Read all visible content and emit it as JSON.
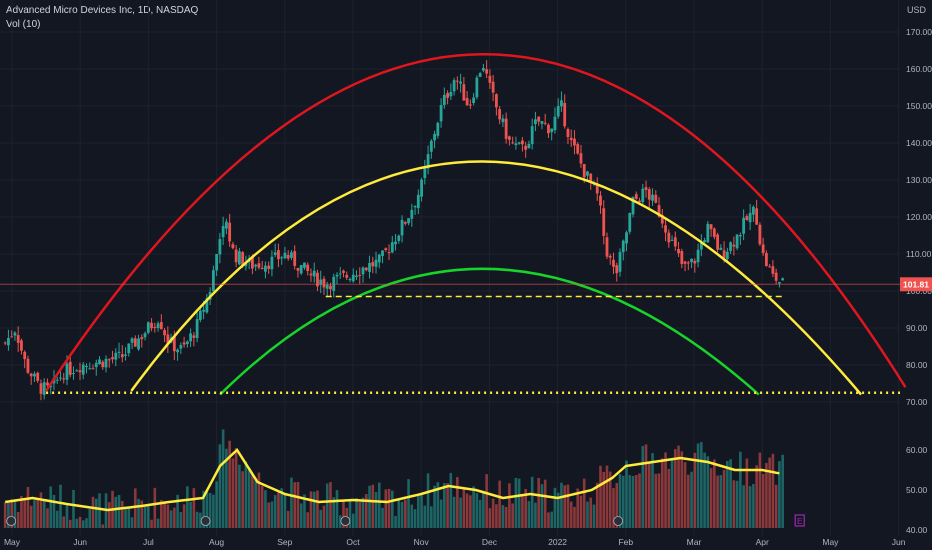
{
  "header": {
    "title": "Advanced Micro Devices Inc, 1D, NASDAQ",
    "volume_label": "Vol (10)",
    "currency": "USD"
  },
  "chart_data": {
    "type": "candlestick",
    "title": "Advanced Micro Devices Inc, 1D, NASDAQ",
    "currency": "USD",
    "last_price": 101.81,
    "last_price_label": "101.81",
    "y_ticks": [
      "170.00",
      "160.00",
      "150.00",
      "140.00",
      "130.00",
      "120.00",
      "110.00",
      "100.00",
      "90.00",
      "80.00",
      "70.00"
    ],
    "y_tick_values": [
      170,
      160,
      150,
      140,
      130,
      120,
      110,
      100,
      90,
      80,
      70
    ],
    "vol_ticks": [
      "60.00",
      "50.00",
      "40.00"
    ],
    "vol_tick_values": [
      60,
      50,
      40
    ],
    "x_ticks": [
      {
        "label": "May",
        "m": 0
      },
      {
        "label": "Jun",
        "m": 1
      },
      {
        "label": "Jul",
        "m": 2
      },
      {
        "label": "Aug",
        "m": 3
      },
      {
        "label": "Sep",
        "m": 4
      },
      {
        "label": "Oct",
        "m": 5
      },
      {
        "label": "Nov",
        "m": 6
      },
      {
        "label": "Dec",
        "m": 7
      },
      {
        "label": "2022",
        "m": 8
      },
      {
        "label": "Feb",
        "m": 9
      },
      {
        "label": "Mar",
        "m": 10
      },
      {
        "label": "Apr",
        "m": 11
      },
      {
        "label": "May",
        "m": 12
      },
      {
        "label": "Jun",
        "m": 13
      }
    ],
    "price_path": [
      [
        -0.1,
        86
      ],
      [
        0.05,
        90
      ],
      [
        0.2,
        80
      ],
      [
        0.4,
        74
      ],
      [
        0.55,
        73
      ],
      [
        0.75,
        78
      ],
      [
        1.0,
        80
      ],
      [
        1.3,
        81
      ],
      [
        1.6,
        82
      ],
      [
        1.8,
        86
      ],
      [
        2.0,
        90
      ],
      [
        2.15,
        93
      ],
      [
        2.3,
        86
      ],
      [
        2.5,
        84
      ],
      [
        2.7,
        90
      ],
      [
        2.9,
        100
      ],
      [
        3.0,
        110
      ],
      [
        3.1,
        120
      ],
      [
        3.25,
        110
      ],
      [
        3.5,
        107
      ],
      [
        3.8,
        108
      ],
      [
        4.0,
        110
      ],
      [
        4.2,
        107
      ],
      [
        4.4,
        104
      ],
      [
        4.6,
        102
      ],
      [
        4.9,
        104
      ],
      [
        5.1,
        106
      ],
      [
        5.4,
        108
      ],
      [
        5.6,
        114
      ],
      [
        5.8,
        120
      ],
      [
        6.0,
        128
      ],
      [
        6.15,
        140
      ],
      [
        6.3,
        150
      ],
      [
        6.5,
        158
      ],
      [
        6.7,
        150
      ],
      [
        6.9,
        162
      ],
      [
        7.0,
        155
      ],
      [
        7.15,
        147
      ],
      [
        7.3,
        140
      ],
      [
        7.5,
        138
      ],
      [
        7.7,
        146
      ],
      [
        7.9,
        144
      ],
      [
        8.05,
        150
      ],
      [
        8.2,
        140
      ],
      [
        8.4,
        132
      ],
      [
        8.6,
        125
      ],
      [
        8.7,
        112
      ],
      [
        8.85,
        104
      ],
      [
        9.0,
        115
      ],
      [
        9.1,
        124
      ],
      [
        9.3,
        127
      ],
      [
        9.5,
        121
      ],
      [
        9.7,
        112
      ],
      [
        9.85,
        106
      ],
      [
        10.0,
        108
      ],
      [
        10.2,
        117
      ],
      [
        10.4,
        110
      ],
      [
        10.6,
        114
      ],
      [
        10.8,
        120
      ],
      [
        10.9,
        122
      ],
      [
        11.0,
        110
      ],
      [
        11.15,
        104
      ],
      [
        11.3,
        102
      ]
    ],
    "volume_ma_path": [
      [
        -0.1,
        47
      ],
      [
        0.3,
        48
      ],
      [
        0.8,
        46.5
      ],
      [
        1.4,
        45
      ],
      [
        1.9,
        46
      ],
      [
        2.3,
        47
      ],
      [
        2.8,
        48
      ],
      [
        3.05,
        56
      ],
      [
        3.3,
        60
      ],
      [
        3.6,
        52
      ],
      [
        4.0,
        49
      ],
      [
        4.5,
        47
      ],
      [
        5.0,
        47.5
      ],
      [
        5.5,
        47
      ],
      [
        6.0,
        49
      ],
      [
        6.4,
        51
      ],
      [
        6.8,
        50
      ],
      [
        7.2,
        48
      ],
      [
        7.6,
        49
      ],
      [
        8.0,
        48
      ],
      [
        8.5,
        50
      ],
      [
        8.8,
        53
      ],
      [
        9.0,
        56
      ],
      [
        9.4,
        57
      ],
      [
        9.8,
        58
      ],
      [
        10.2,
        57
      ],
      [
        10.6,
        55
      ],
      [
        11.0,
        55
      ],
      [
        11.3,
        54
      ]
    ],
    "arcs": [
      {
        "name": "outer",
        "color": "#e0161f",
        "start": [
          0.5,
          73
        ],
        "end": [
          13.1,
          74
        ],
        "peak": [
          6.9,
          164
        ]
      },
      {
        "name": "middle",
        "color": "#ffeb3b",
        "start": [
          1.75,
          73
        ],
        "end": [
          12.45,
          72
        ],
        "peak": [
          6.9,
          135
        ]
      },
      {
        "name": "inner",
        "color": "#18d32a",
        "start": [
          3.05,
          72
        ],
        "end": [
          10.95,
          72
        ],
        "peak": [
          6.9,
          106
        ]
      }
    ],
    "support_levels": [
      {
        "style": "dotted",
        "color": "#ffeb3b",
        "value": 72.5,
        "from": 0.5,
        "to": 13.4
      },
      {
        "style": "dashed",
        "color": "#ffeb3b",
        "value": 98.5,
        "from": 4.6,
        "to": 11.3
      }
    ],
    "candle_up_color": "#26a69a",
    "candle_down_color": "#ef5350",
    "price_line_color": "#ef5350",
    "earnings_marker": "E",
    "earnings_color": "#9c27b0"
  }
}
